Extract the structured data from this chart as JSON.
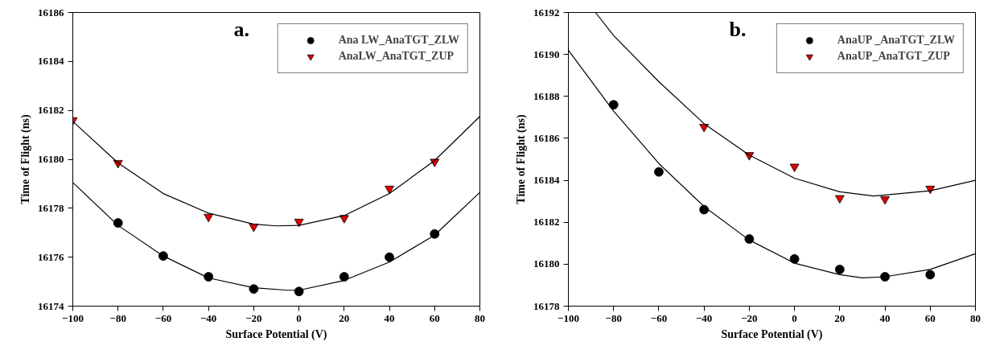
{
  "chart_data": [
    {
      "type": "scatter",
      "annotations": [
        "a."
      ],
      "xlabel": "Surface Potential (V)",
      "ylabel": "Time of Flight (ns)",
      "xlim": [
        -100,
        80
      ],
      "xticks": [
        -100,
        -80,
        -60,
        -40,
        -20,
        0,
        20,
        40,
        60,
        80
      ],
      "ylim": [
        16174,
        16186
      ],
      "yticks": [
        16174,
        16176,
        16178,
        16180,
        16182,
        16184,
        16186
      ],
      "grid": false,
      "legend": "top right",
      "series": [
        {
          "name": "Ana LW_AnaTGT_ZLW",
          "color": "#000000",
          "marker": "circle",
          "x": [
            -80,
            -60,
            -40,
            -20,
            0,
            20,
            40,
            60
          ],
          "values": [
            16177.4,
            16176.05,
            16175.2,
            16174.7,
            16174.6,
            16175.2,
            16176.0,
            16176.95
          ]
        },
        {
          "name": "AnaLW_AnaTGT_ZUP",
          "color": "#e00000",
          "marker": "triangle",
          "x": [
            -100,
            -80,
            -40,
            -20,
            0,
            20,
            40,
            60
          ],
          "values": [
            16181.6,
            16179.85,
            16177.65,
            16177.25,
            16177.45,
            16177.6,
            16178.8,
            16179.9
          ]
        },
        {
          "type": "line",
          "color": "#000000",
          "x": [
            -100,
            -80,
            -60,
            -40,
            -20,
            -5,
            0,
            20,
            40,
            60,
            80
          ],
          "values": [
            16179.05,
            16177.3,
            16176.05,
            16175.15,
            16174.75,
            16174.65,
            16174.65,
            16175.05,
            16175.8,
            16176.9,
            16178.65
          ]
        },
        {
          "type": "line",
          "color": "#000000",
          "x": [
            -100,
            -80,
            -60,
            -40,
            -20,
            -10,
            0,
            20,
            40,
            60,
            80
          ],
          "values": [
            16181.55,
            16179.85,
            16178.6,
            16177.8,
            16177.35,
            16177.28,
            16177.3,
            16177.7,
            16178.6,
            16179.95,
            16181.75
          ]
        }
      ]
    },
    {
      "type": "scatter",
      "annotations": [
        "b."
      ],
      "xlabel": "Surface Potential (V)",
      "ylabel": "Time of Flight (ns)",
      "xlim": [
        -100,
        80
      ],
      "xticks": [
        -100,
        -80,
        -60,
        -40,
        -20,
        0,
        20,
        40,
        60,
        80
      ],
      "ylim": [
        16178,
        16192
      ],
      "yticks": [
        16178,
        16180,
        16182,
        16184,
        16186,
        16188,
        16190,
        16192
      ],
      "grid": false,
      "legend": "top right",
      "series": [
        {
          "name": "AnaUP _AnaTGT_ZLW",
          "color": "#000000",
          "marker": "circle",
          "x": [
            -80,
            -60,
            -40,
            -20,
            0,
            20,
            40,
            60
          ],
          "values": [
            16187.6,
            16184.4,
            16182.6,
            16181.2,
            16180.25,
            16179.75,
            16179.4,
            16179.5
          ]
        },
        {
          "name": "AnaUP_AnaTGT_ZUP",
          "color": "#e00000",
          "marker": "triangle",
          "x": [
            -40,
            -20,
            0,
            20,
            40,
            60
          ],
          "values": [
            16186.55,
            16185.2,
            16184.65,
            16183.15,
            16183.1,
            16183.6
          ]
        },
        {
          "type": "line",
          "color": "#000000",
          "x": [
            -100,
            -80,
            -60,
            -40,
            -20,
            0,
            20,
            30,
            40,
            60,
            80
          ],
          "values": [
            16190.2,
            16187.3,
            16184.8,
            16182.75,
            16181.15,
            16180.05,
            16179.5,
            16179.35,
            16179.4,
            16179.75,
            16180.5
          ]
        },
        {
          "type": "line",
          "color": "#000000",
          "x": [
            -88,
            -80,
            -60,
            -40,
            -20,
            0,
            20,
            35,
            40,
            60,
            80
          ],
          "values": [
            16192,
            16190.9,
            16188.7,
            16186.7,
            16185.2,
            16184.1,
            16183.45,
            16183.25,
            16183.3,
            16183.5,
            16184.0
          ]
        }
      ]
    }
  ]
}
